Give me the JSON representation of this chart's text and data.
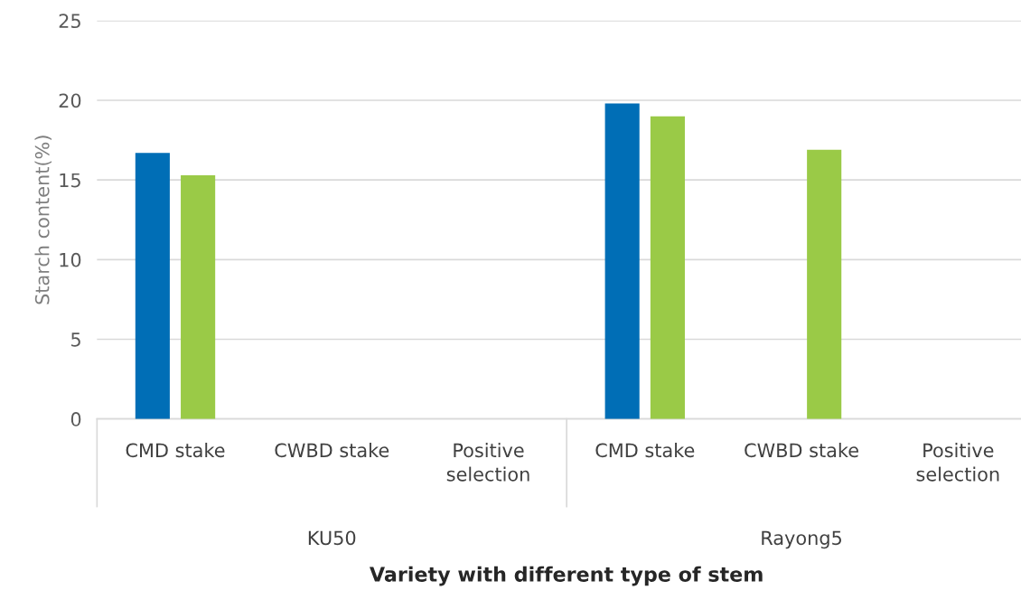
{
  "chart_data": {
    "type": "bar",
    "categories": [
      "CMD stake",
      "CWBD stake",
      "Positive selection",
      "CMD stake",
      "CWBD stake",
      "Positive selection"
    ],
    "series": [
      {
        "color": "#006eb6",
        "values": [
          16.7,
          null,
          null,
          19.8,
          null,
          null
        ]
      },
      {
        "color": "#9aca47",
        "values": [
          15.3,
          null,
          null,
          19.0,
          16.9,
          null
        ]
      }
    ],
    "annotations": [
      "KU50",
      "Rayong5"
    ],
    "xlabel": "Variety with different type of stem",
    "ylabel": "Starch content(%)",
    "ylim": [
      0,
      25
    ],
    "yticks": [
      0,
      5,
      10,
      15,
      20,
      25
    ],
    "grid": "y",
    "legend": false
  }
}
